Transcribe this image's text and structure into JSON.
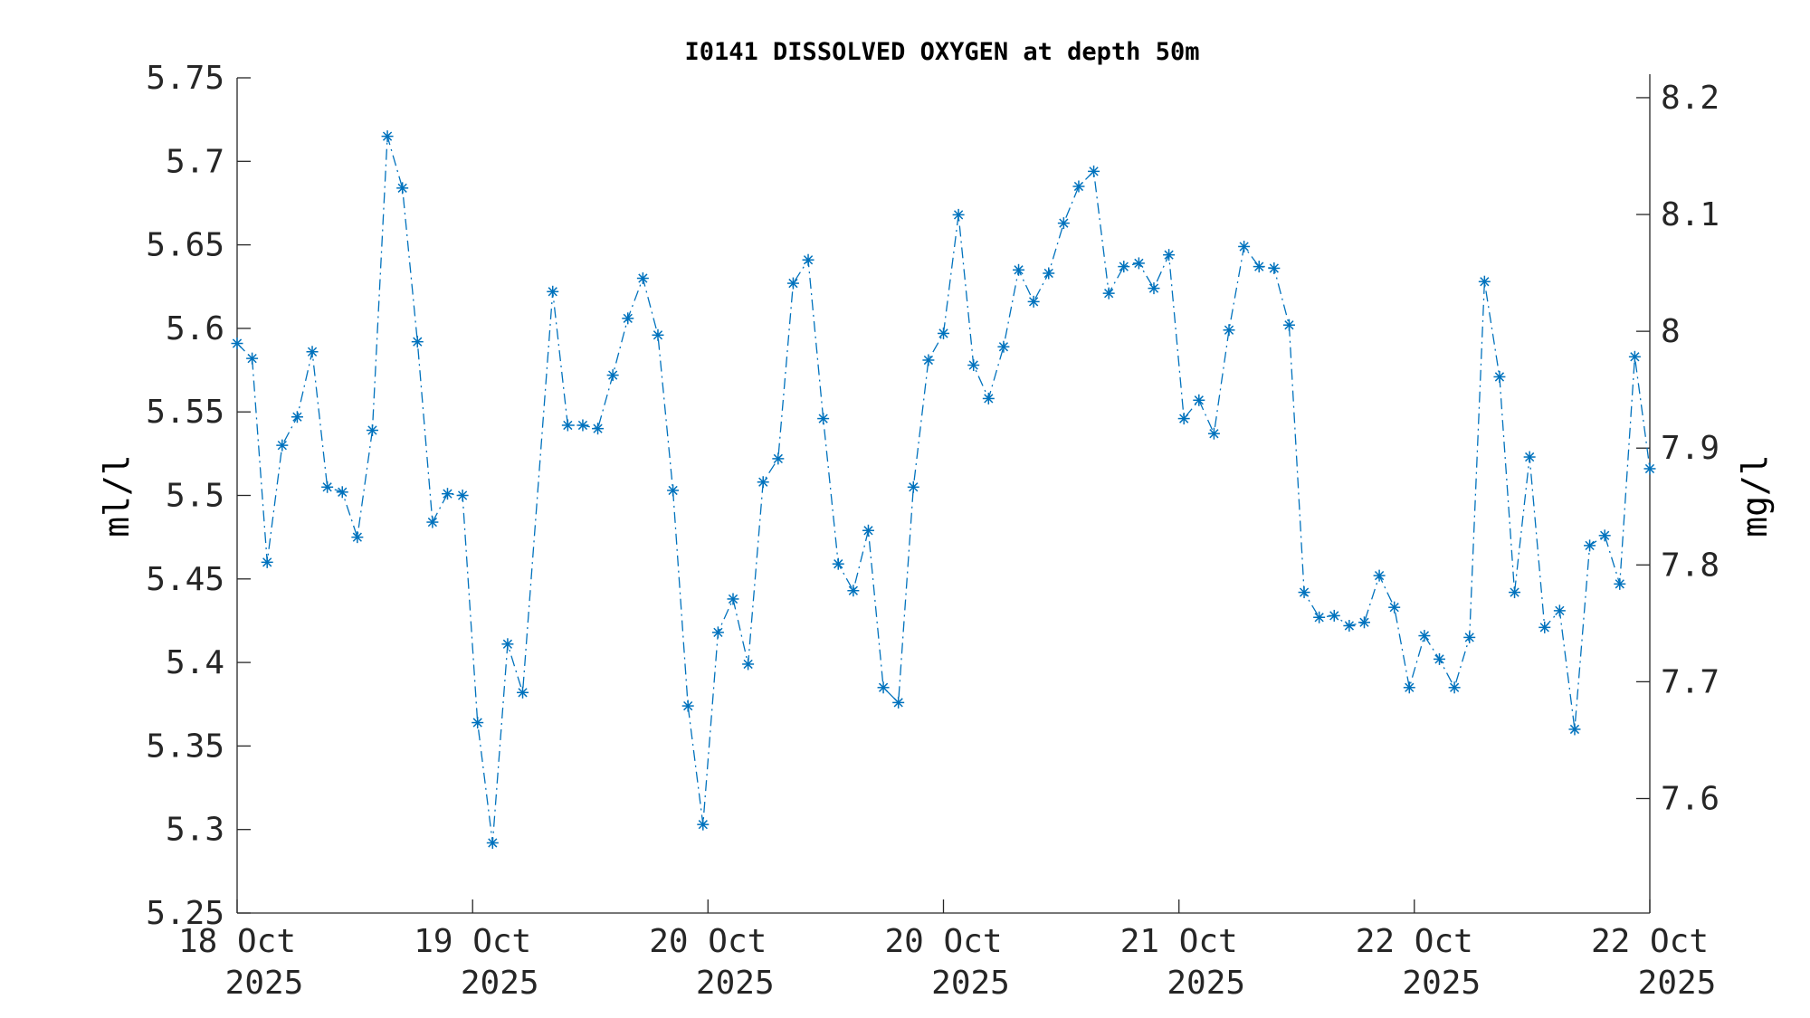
{
  "chart_data": {
    "type": "line",
    "title": "I0141 DISSOLVED OXYGEN at depth 50m",
    "ylabel": "ml/l",
    "ylabel_right": "mg/l",
    "xlabel": "",
    "marker": "asterisk",
    "line_style": "dash-dot",
    "color": "#0072BD",
    "grid": false,
    "ylim": [
      5.25,
      5.75
    ],
    "ylim_right": [
      7.502,
      8.217
    ],
    "yticks": [
      "5.25",
      "5.3",
      "5.35",
      "5.4",
      "5.45",
      "5.5",
      "5.55",
      "5.6",
      "5.65",
      "5.7",
      "5.75"
    ],
    "yticks_right": [
      "7.6",
      "7.7",
      "7.8",
      "7.9",
      "8",
      "8.1",
      "8.2"
    ],
    "xlim": [
      0,
      94
    ],
    "xticks": [
      {
        "pos": 0,
        "line1": "18 Oct",
        "line2": "2025"
      },
      {
        "pos": 15.67,
        "line1": "19 Oct",
        "line2": "2025"
      },
      {
        "pos": 31.33,
        "line1": "20 Oct",
        "line2": "2025"
      },
      {
        "pos": 47,
        "line1": "20 Oct",
        "line2": "2025"
      },
      {
        "pos": 62.67,
        "line1": "21 Oct",
        "line2": "2025"
      },
      {
        "pos": 78.33,
        "line1": "22 Oct",
        "line2": "2025"
      },
      {
        "pos": 94,
        "line1": "22 Oct",
        "line2": "2025"
      }
    ],
    "x": [
      0,
      1,
      2,
      3,
      4,
      5,
      6,
      7,
      8,
      9,
      10,
      11,
      12,
      13,
      14,
      15,
      16,
      17,
      18,
      19,
      21,
      22,
      23,
      24,
      25,
      26,
      27,
      28,
      29,
      30,
      31,
      32,
      33,
      34,
      35,
      36,
      37,
      38,
      39,
      40,
      41,
      42,
      43,
      44,
      45,
      46,
      47,
      48,
      49,
      50,
      51,
      52,
      53,
      54,
      55,
      56,
      57,
      58,
      59,
      60,
      61,
      62,
      63,
      64,
      65,
      66,
      67,
      68,
      69,
      70,
      71,
      72,
      73,
      74,
      75,
      76,
      77,
      78,
      79,
      80,
      81,
      82,
      83,
      84,
      85,
      86,
      87,
      88,
      89,
      90,
      91,
      92,
      93,
      94
    ],
    "values": [
      5.591,
      5.582,
      5.46,
      5.53,
      5.547,
      5.586,
      5.505,
      5.502,
      5.475,
      5.539,
      5.715,
      5.684,
      5.592,
      5.484,
      5.501,
      5.5,
      5.364,
      5.292,
      5.411,
      5.382,
      5.622,
      5.542,
      5.542,
      5.54,
      5.572,
      5.606,
      5.63,
      5.596,
      5.503,
      5.374,
      5.303,
      5.418,
      5.438,
      5.399,
      5.508,
      5.522,
      5.627,
      5.641,
      5.546,
      5.459,
      5.443,
      5.479,
      5.385,
      5.376,
      5.505,
      5.581,
      5.597,
      5.668,
      5.578,
      5.558,
      5.589,
      5.635,
      5.616,
      5.633,
      5.663,
      5.685,
      5.694,
      5.621,
      5.637,
      5.639,
      5.624,
      5.644,
      5.546,
      5.557,
      5.537,
      5.599,
      5.649,
      5.637,
      5.636,
      5.602,
      5.442,
      5.427,
      5.428,
      5.422,
      5.424,
      5.452,
      5.433,
      5.385,
      5.416,
      5.402,
      5.385,
      5.415,
      5.628,
      5.571,
      5.442,
      5.523,
      5.421,
      5.431,
      5.36,
      5.47,
      5.476,
      5.447,
      5.583,
      5.516
    ]
  }
}
